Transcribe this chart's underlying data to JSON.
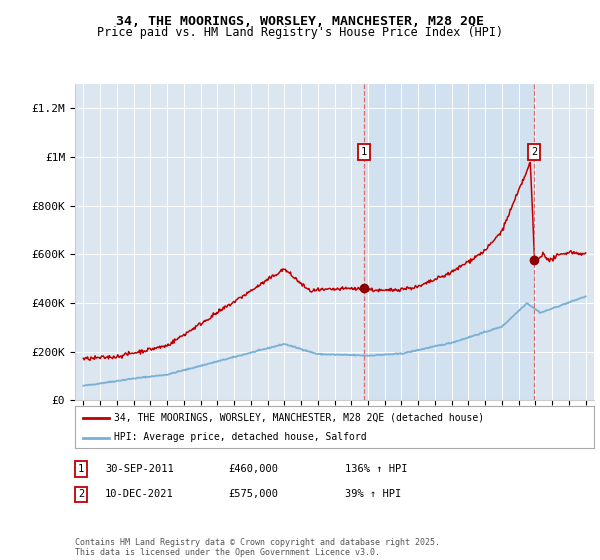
{
  "title1": "34, THE MOORINGS, WORSLEY, MANCHESTER, M28 2QE",
  "title2": "Price paid vs. HM Land Registry's House Price Index (HPI)",
  "ylabel_ticks": [
    "£0",
    "£200K",
    "£400K",
    "£600K",
    "£800K",
    "£1M",
    "£1.2M"
  ],
  "ytick_values": [
    0,
    200000,
    400000,
    600000,
    800000,
    1000000,
    1200000
  ],
  "ylim": [
    0,
    1300000
  ],
  "xlim_start": 1994.5,
  "xlim_end": 2025.5,
  "plot_bg_color": "#dce6f1",
  "shade_color": "#cfe0f0",
  "red_line_color": "#c00000",
  "blue_line_color": "#7ab0d4",
  "dashed_line_color": "#e06060",
  "sale1_x": 2011.75,
  "sale2_x": 2021.92,
  "sale1_y": 460000,
  "sale2_y": 575000,
  "sale1_date": "30-SEP-2011",
  "sale1_price": "£460,000",
  "sale1_hpi": "136% ↑ HPI",
  "sale2_date": "10-DEC-2021",
  "sale2_price": "£575,000",
  "sale2_hpi": "39% ↑ HPI",
  "legend1": "34, THE MOORINGS, WORSLEY, MANCHESTER, M28 2QE (detached house)",
  "legend2": "HPI: Average price, detached house, Salford",
  "footer": "Contains HM Land Registry data © Crown copyright and database right 2025.\nThis data is licensed under the Open Government Licence v3.0.",
  "xticks": [
    1995,
    1996,
    1997,
    1998,
    1999,
    2000,
    2001,
    2002,
    2003,
    2004,
    2005,
    2006,
    2007,
    2008,
    2009,
    2010,
    2011,
    2012,
    2013,
    2014,
    2015,
    2016,
    2017,
    2018,
    2019,
    2020,
    2021,
    2022,
    2023,
    2024,
    2025
  ]
}
